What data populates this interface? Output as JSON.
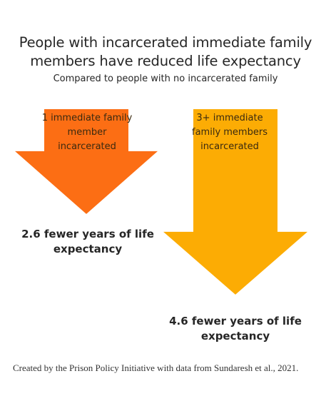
{
  "chart_data": {
    "type": "bar",
    "title": "People with incarcerated immediate family members have reduced life expectancy",
    "subtitle": "Compared to people with no incarcerated family",
    "categories": [
      "1 immediate family member incarcerated",
      "3+ immediate family members incarcerated"
    ],
    "values": [
      2.6,
      4.6
    ],
    "value_labels": [
      "2.6 fewer years of life expectancy",
      "4.6 fewer years of life expectancy"
    ],
    "colors": [
      "#fc6e14",
      "#fcac04"
    ],
    "orientation": "downward arrows",
    "xlabel": "",
    "ylabel": ""
  },
  "credit": "Created by the Prison Policy Initiative with data from Sundaresh et al., 2021."
}
